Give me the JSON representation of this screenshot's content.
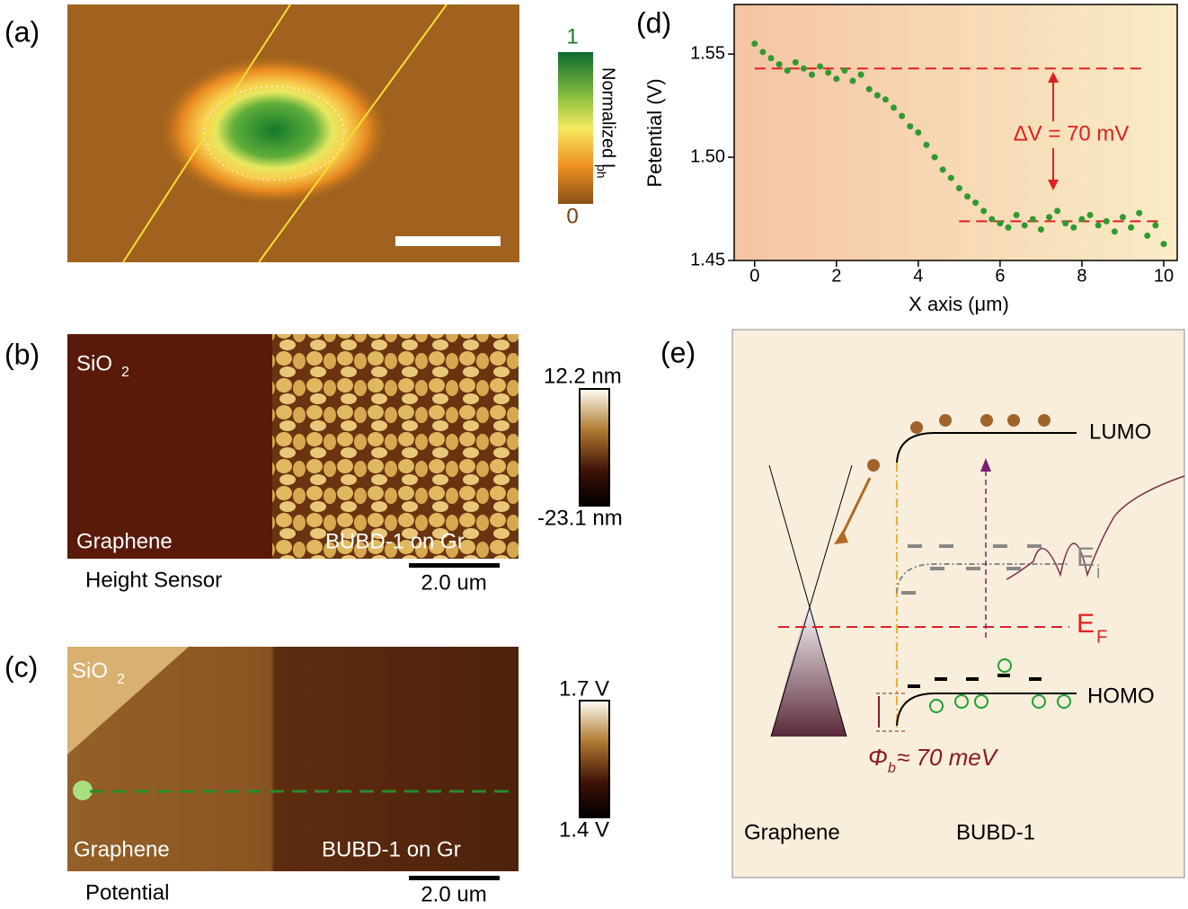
{
  "panels": {
    "a": {
      "label": "(a)",
      "colorbar": {
        "max": "1",
        "min": "0",
        "title": {
          "base": "Normalized I",
          "sub": "ph"
        }
      }
    },
    "b": {
      "label": "(b)",
      "substrate": {
        "base": "SiO",
        "sub": "2"
      },
      "left": "Graphene",
      "right": "BUBD-1 on Gr",
      "caption": "Height Sensor",
      "scale": "2.0 um",
      "colorbar": {
        "max": "12.2 nm",
        "min": "-23.1 nm"
      }
    },
    "c": {
      "label": "(c)",
      "substrate": {
        "base": "SiO",
        "sub": "2"
      },
      "left": "Graphene",
      "right": "BUBD-1 on Gr",
      "caption": "Potential",
      "scale": "2.0 um",
      "colorbar": {
        "max": "1.7 V",
        "min": "1.4 V"
      }
    },
    "d": {
      "label": "(d)"
    },
    "e": {
      "label": "(e)",
      "lumo": "LUMO",
      "homo": "HOMO",
      "ei": {
        "base": "E",
        "sub": "i"
      },
      "ef": {
        "base": "E",
        "sub": "F"
      },
      "barrier": {
        "base": "Φ",
        "sub": "b",
        "rest": " ≈ 70 meV"
      },
      "left": "Graphene",
      "right": "BUBD-1"
    }
  },
  "chart_data": {
    "type": "scatter",
    "y_label": "Petential (V)",
    "x_label": "X axis (μm)",
    "color": "#2f9a2f",
    "x": [
      0,
      0.2,
      0.4,
      0.6,
      0.8,
      1.0,
      1.2,
      1.4,
      1.6,
      1.8,
      2.0,
      2.2,
      2.4,
      2.6,
      2.8,
      3.0,
      3.2,
      3.4,
      3.6,
      3.8,
      4.0,
      4.2,
      4.4,
      4.6,
      4.8,
      5.0,
      5.2,
      5.4,
      5.6,
      5.8,
      6.0,
      6.2,
      6.4,
      6.6,
      6.8,
      7.0,
      7.2,
      7.4,
      7.6,
      7.8,
      8.0,
      8.2,
      8.4,
      8.6,
      8.8,
      9.0,
      9.2,
      9.4,
      9.6,
      9.8,
      10.0
    ],
    "values": [
      1.555,
      1.551,
      1.548,
      1.545,
      1.542,
      1.546,
      1.543,
      1.54,
      1.544,
      1.541,
      1.538,
      1.542,
      1.537,
      1.54,
      1.533,
      1.53,
      1.528,
      1.524,
      1.52,
      1.515,
      1.512,
      1.506,
      1.5,
      1.494,
      1.49,
      1.485,
      1.481,
      1.478,
      1.474,
      1.47,
      1.468,
      1.466,
      1.472,
      1.467,
      1.47,
      1.465,
      1.471,
      1.474,
      1.468,
      1.466,
      1.47,
      1.472,
      1.467,
      1.469,
      1.464,
      1.471,
      1.466,
      1.473,
      1.462,
      1.467,
      1.458
    ],
    "xlim": [
      -0.5,
      10.33
    ],
    "ylim": [
      1.45,
      1.574
    ],
    "xticks": [
      0,
      2,
      4,
      6,
      8,
      10
    ],
    "yticks": [
      1.45,
      {
        "value": 1.5,
        "label": "1.50"
      },
      1.55
    ],
    "reference_lines": [
      {
        "y": 1.543,
        "x": [
          0,
          9.6
        ]
      },
      {
        "y": 1.469,
        "x": [
          5.0,
          10.0
        ]
      }
    ],
    "annotation": "ΔV = 70 mV"
  }
}
